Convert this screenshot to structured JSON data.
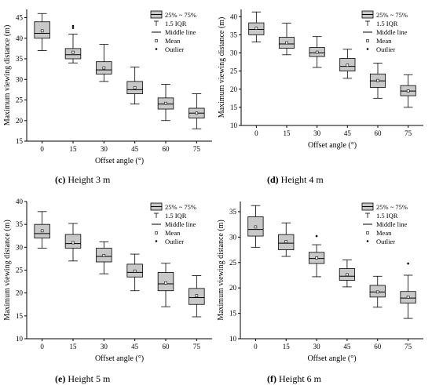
{
  "chart_data": [
    {
      "type": "box",
      "caption_letter": "(c)",
      "caption_text": "Height 3 m",
      "xlabel": "Offset angle (°)",
      "ylabel": "Maximum viewing distance (m)",
      "categories": [
        "0",
        "15",
        "30",
        "45",
        "60",
        "75"
      ],
      "ylim": [
        15,
        47
      ],
      "yticks": [
        15,
        20,
        25,
        30,
        35,
        40,
        45
      ],
      "boxes": [
        {
          "min": 37.0,
          "q1": 40.0,
          "median": 41.2,
          "q3": 44.0,
          "max": 46.0,
          "mean": 41.8,
          "outliers": []
        },
        {
          "min": 34.0,
          "q1": 35.0,
          "median": 36.0,
          "q3": 37.5,
          "max": 41.0,
          "mean": 36.6,
          "outliers": [
            42.5,
            43.0
          ]
        },
        {
          "min": 29.5,
          "q1": 31.3,
          "median": 32.3,
          "q3": 34.3,
          "max": 38.5,
          "mean": 32.8,
          "outliers": []
        },
        {
          "min": 24.0,
          "q1": 26.5,
          "median": 27.5,
          "q3": 29.5,
          "max": 33.0,
          "mean": 28.0,
          "outliers": []
        },
        {
          "min": 20.0,
          "q1": 22.8,
          "median": 24.0,
          "q3": 25.5,
          "max": 28.8,
          "mean": 24.2,
          "outliers": []
        },
        {
          "min": 18.0,
          "q1": 20.6,
          "median": 21.8,
          "q3": 23.0,
          "max": 26.5,
          "mean": 21.8,
          "outliers": []
        }
      ]
    },
    {
      "type": "box",
      "caption_letter": "(d)",
      "caption_text": "Height 4 m",
      "xlabel": "Offset angle (°)",
      "ylabel": "Maximum viewing distance (m)",
      "categories": [
        "0",
        "15",
        "30",
        "45",
        "60",
        "75"
      ],
      "ylim": [
        10,
        42
      ],
      "yticks": [
        10,
        15,
        20,
        25,
        30,
        35,
        40
      ],
      "boxes": [
        {
          "min": 33.0,
          "q1": 35.0,
          "median": 36.5,
          "q3": 38.3,
          "max": 41.3,
          "mean": 36.8,
          "outliers": []
        },
        {
          "min": 29.5,
          "q1": 31.3,
          "median": 32.5,
          "q3": 34.3,
          "max": 38.2,
          "mean": 32.8,
          "outliers": []
        },
        {
          "min": 26.0,
          "q1": 29.0,
          "median": 30.0,
          "q3": 31.5,
          "max": 34.5,
          "mean": 30.2,
          "outliers": []
        },
        {
          "min": 23.0,
          "q1": 25.0,
          "median": 26.3,
          "q3": 28.5,
          "max": 31.0,
          "mean": 26.6,
          "outliers": []
        },
        {
          "min": 17.5,
          "q1": 20.5,
          "median": 22.3,
          "q3": 24.2,
          "max": 27.2,
          "mean": 22.4,
          "outliers": []
        },
        {
          "min": 15.0,
          "q1": 18.2,
          "median": 19.5,
          "q3": 21.0,
          "max": 24.0,
          "mean": 19.5,
          "outliers": []
        }
      ]
    },
    {
      "type": "box",
      "caption_letter": "(e)",
      "caption_text": "Height 5 m",
      "xlabel": "Offset angle (°)",
      "ylabel": "Maximum viewing distance (m)",
      "categories": [
        "0",
        "15",
        "30",
        "45",
        "60",
        "75"
      ],
      "ylim": [
        10,
        40
      ],
      "yticks": [
        10,
        15,
        20,
        25,
        30,
        35,
        40
      ],
      "boxes": [
        {
          "min": 29.8,
          "q1": 32.0,
          "median": 33.0,
          "q3": 35.0,
          "max": 37.8,
          "mean": 33.6,
          "outliers": []
        },
        {
          "min": 27.0,
          "q1": 29.8,
          "median": 30.8,
          "q3": 32.8,
          "max": 35.2,
          "mean": 31.0,
          "outliers": []
        },
        {
          "min": 24.2,
          "q1": 26.8,
          "median": 28.0,
          "q3": 29.8,
          "max": 31.2,
          "mean": 28.2,
          "outliers": []
        },
        {
          "min": 20.5,
          "q1": 23.5,
          "median": 24.5,
          "q3": 26.3,
          "max": 28.5,
          "mean": 24.8,
          "outliers": []
        },
        {
          "min": 17.0,
          "q1": 20.5,
          "median": 22.0,
          "q3": 24.5,
          "max": 26.5,
          "mean": 22.2,
          "outliers": []
        },
        {
          "min": 14.8,
          "q1": 17.5,
          "median": 19.0,
          "q3": 21.0,
          "max": 23.8,
          "mean": 19.4,
          "outliers": []
        }
      ]
    },
    {
      "type": "box",
      "caption_letter": "(f)",
      "caption_text": "Height 6 m",
      "xlabel": "Offset angle (°)",
      "ylabel": "Maximum viewing distance (m)",
      "categories": [
        "0",
        "15",
        "30",
        "45",
        "60",
        "75"
      ],
      "ylim": [
        10,
        37
      ],
      "yticks": [
        10,
        15,
        20,
        25,
        30,
        35
      ],
      "boxes": [
        {
          "min": 28.0,
          "q1": 30.2,
          "median": 31.5,
          "q3": 34.0,
          "max": 36.2,
          "mean": 32.0,
          "outliers": []
        },
        {
          "min": 26.2,
          "q1": 27.5,
          "median": 28.8,
          "q3": 30.5,
          "max": 32.8,
          "mean": 29.1,
          "outliers": []
        },
        {
          "min": 22.2,
          "q1": 24.8,
          "median": 25.8,
          "q3": 27.0,
          "max": 28.5,
          "mean": 25.9,
          "outliers": [
            30.2
          ]
        },
        {
          "min": 20.2,
          "q1": 21.5,
          "median": 22.3,
          "q3": 23.8,
          "max": 25.5,
          "mean": 22.6,
          "outliers": []
        },
        {
          "min": 16.2,
          "q1": 18.2,
          "median": 19.2,
          "q3": 20.5,
          "max": 22.3,
          "mean": 19.2,
          "outliers": []
        },
        {
          "min": 14.0,
          "q1": 17.0,
          "median": 18.0,
          "q3": 19.3,
          "max": 22.5,
          "mean": 18.2,
          "outliers": [
            24.8
          ]
        }
      ]
    }
  ],
  "legend": {
    "box_label": "25% ~ 75%",
    "whisker_label": "1.5 IQR",
    "median_label": "Middle line",
    "mean_label": "Mean",
    "outlier_label": "Outlier"
  },
  "colors": {
    "box_fill": "#c8c8c8",
    "stroke": "#000000"
  }
}
